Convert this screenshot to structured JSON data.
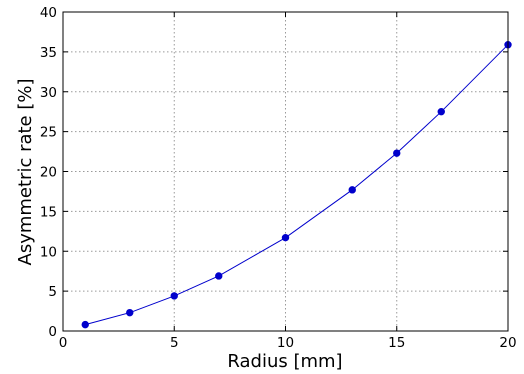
{
  "chart_data": {
    "type": "line",
    "title": "",
    "xlabel": "Radius [mm]",
    "ylabel": "Asymmetric rate [%]",
    "xlim": [
      0,
      20
    ],
    "ylim": [
      0,
      40
    ],
    "xticks": [
      0,
      5,
      10,
      15,
      20
    ],
    "yticks": [
      0,
      5,
      10,
      15,
      20,
      25,
      30,
      35,
      40
    ],
    "grid": true,
    "legend": "none",
    "series": [
      {
        "color": "#0000cc",
        "marker": "circle",
        "x": [
          1,
          3,
          5,
          7,
          10,
          13,
          15,
          17,
          20
        ],
        "y": [
          0.8,
          2.3,
          4.4,
          6.9,
          11.7,
          17.7,
          22.3,
          27.5,
          35.9
        ]
      }
    ]
  }
}
